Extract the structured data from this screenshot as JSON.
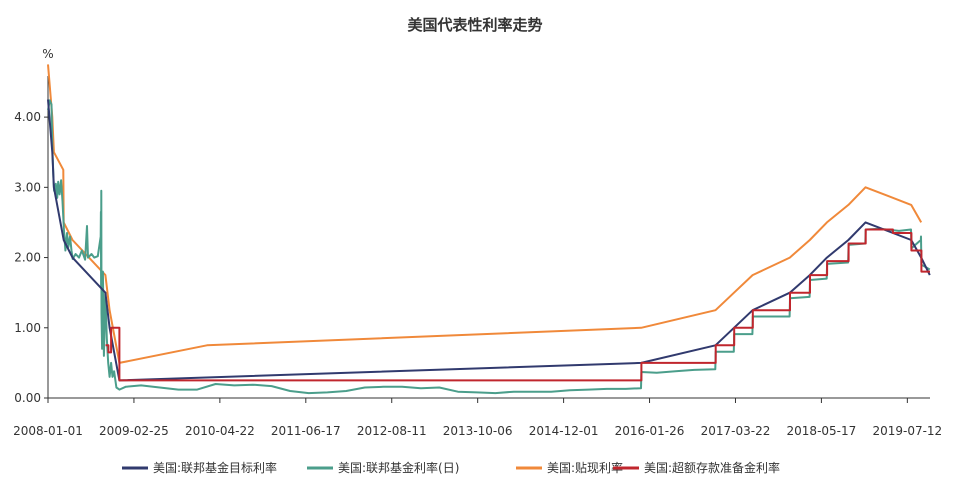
{
  "chart_data": {
    "type": "line",
    "title": "美国代表性利率走势",
    "y_unit": "%",
    "ylim": [
      0,
      4.5
    ],
    "y_ticks": [
      "0.00",
      "1.00",
      "2.00",
      "3.00",
      "4.00"
    ],
    "x_tick_labels": [
      "2008-01-01",
      "2009-02-25",
      "2010-04-22",
      "2011-06-17",
      "2012-08-11",
      "2013-10-06",
      "2014-12-01",
      "2016-01-26",
      "2017-03-22",
      "2018-05-17",
      "2019-07-12"
    ],
    "x_range": [
      "2008-01-01",
      "2019-10-31"
    ],
    "legend_position": "bottom",
    "series": [
      {
        "name": "美国:联邦基金目标利率",
        "color": "#313a6e",
        "step": false,
        "points": [
          [
            "2008-01-01",
            4.25
          ],
          [
            "2008-01-22",
            3.5
          ],
          [
            "2008-01-30",
            3.0
          ],
          [
            "2008-03-18",
            2.25
          ],
          [
            "2008-04-30",
            2.0
          ],
          [
            "2008-10-08",
            1.5
          ],
          [
            "2008-10-29",
            1.0
          ],
          [
            "2008-12-16",
            0.25
          ],
          [
            "2015-12-16",
            0.5
          ],
          [
            "2016-12-14",
            0.75
          ],
          [
            "2017-03-15",
            1.0
          ],
          [
            "2017-06-14",
            1.25
          ],
          [
            "2017-12-13",
            1.5
          ],
          [
            "2018-03-21",
            1.75
          ],
          [
            "2018-06-13",
            2.0
          ],
          [
            "2018-09-26",
            2.25
          ],
          [
            "2018-12-19",
            2.5
          ],
          [
            "2019-07-31",
            2.25
          ],
          [
            "2019-09-18",
            2.0
          ],
          [
            "2019-10-30",
            1.75
          ]
        ]
      },
      {
        "name": "美国:联邦基金利率(日)",
        "color": "#4b9e8b",
        "step": false,
        "points": [
          [
            "2008-01-01",
            4.1
          ],
          [
            "2008-01-10",
            4.24
          ],
          [
            "2008-01-18",
            4.18
          ],
          [
            "2008-01-22",
            3.6
          ],
          [
            "2008-01-28",
            3.1
          ],
          [
            "2008-01-31",
            2.95
          ],
          [
            "2008-02-08",
            3.05
          ],
          [
            "2008-02-15",
            2.85
          ],
          [
            "2008-02-20",
            3.08
          ],
          [
            "2008-02-27",
            2.9
          ],
          [
            "2008-03-05",
            3.1
          ],
          [
            "2008-03-12",
            2.8
          ],
          [
            "2008-03-19",
            2.4
          ],
          [
            "2008-03-26",
            2.1
          ],
          [
            "2008-04-03",
            2.35
          ],
          [
            "2008-04-10",
            2.15
          ],
          [
            "2008-04-18",
            2.3
          ],
          [
            "2008-04-25",
            2.1
          ],
          [
            "2008-05-01",
            1.98
          ],
          [
            "2008-05-15",
            2.05
          ],
          [
            "2008-06-01",
            2.0
          ],
          [
            "2008-06-15",
            2.1
          ],
          [
            "2008-07-01",
            1.97
          ],
          [
            "2008-07-10",
            2.45
          ],
          [
            "2008-07-15",
            2.0
          ],
          [
            "2008-08-01",
            2.05
          ],
          [
            "2008-08-15",
            2.0
          ],
          [
            "2008-09-01",
            2.02
          ],
          [
            "2008-09-15",
            2.3
          ],
          [
            "2008-09-16",
            2.65
          ],
          [
            "2008-09-17",
            1.6
          ],
          [
            "2008-09-18",
            2.95
          ],
          [
            "2008-09-19",
            1.2
          ],
          [
            "2008-09-22",
            0.7
          ],
          [
            "2008-09-26",
            1.8
          ],
          [
            "2008-10-01",
            0.6
          ],
          [
            "2008-10-08",
            1.5
          ],
          [
            "2008-10-15",
            0.85
          ],
          [
            "2008-10-22",
            0.5
          ],
          [
            "2008-10-29",
            0.3
          ],
          [
            "2008-11-05",
            0.5
          ],
          [
            "2008-11-12",
            0.3
          ],
          [
            "2008-11-20",
            0.38
          ],
          [
            "2008-12-01",
            0.15
          ],
          [
            "2008-12-16",
            0.12
          ],
          [
            "2009-01-15",
            0.16
          ],
          [
            "2009-04-01",
            0.18
          ],
          [
            "2009-07-01",
            0.15
          ],
          [
            "2009-10-01",
            0.12
          ],
          [
            "2010-01-01",
            0.12
          ],
          [
            "2010-04-01",
            0.2
          ],
          [
            "2010-07-01",
            0.18
          ],
          [
            "2010-10-01",
            0.19
          ],
          [
            "2011-01-01",
            0.17
          ],
          [
            "2011-04-01",
            0.1
          ],
          [
            "2011-07-01",
            0.07
          ],
          [
            "2011-10-01",
            0.08
          ],
          [
            "2012-01-01",
            0.1
          ],
          [
            "2012-04-01",
            0.15
          ],
          [
            "2012-07-01",
            0.16
          ],
          [
            "2012-10-01",
            0.16
          ],
          [
            "2013-01-01",
            0.14
          ],
          [
            "2013-04-01",
            0.15
          ],
          [
            "2013-07-01",
            0.09
          ],
          [
            "2013-10-01",
            0.08
          ],
          [
            "2014-01-01",
            0.07
          ],
          [
            "2014-04-01",
            0.09
          ],
          [
            "2014-07-01",
            0.09
          ],
          [
            "2014-10-01",
            0.09
          ],
          [
            "2015-01-01",
            0.11
          ],
          [
            "2015-04-01",
            0.12
          ],
          [
            "2015-07-01",
            0.13
          ],
          [
            "2015-10-01",
            0.13
          ],
          [
            "2015-12-15",
            0.14
          ],
          [
            "2015-12-17",
            0.37
          ],
          [
            "2016-03-01",
            0.36
          ],
          [
            "2016-06-01",
            0.38
          ],
          [
            "2016-09-01",
            0.4
          ],
          [
            "2016-12-13",
            0.41
          ],
          [
            "2016-12-15",
            0.66
          ],
          [
            "2017-03-14",
            0.66
          ],
          [
            "2017-03-16",
            0.91
          ],
          [
            "2017-06-13",
            0.91
          ],
          [
            "2017-06-15",
            1.16
          ],
          [
            "2017-12-12",
            1.16
          ],
          [
            "2017-12-14",
            1.42
          ],
          [
            "2018-03-20",
            1.44
          ],
          [
            "2018-03-22",
            1.68
          ],
          [
            "2018-06-12",
            1.7
          ],
          [
            "2018-06-14",
            1.91
          ],
          [
            "2018-09-25",
            1.93
          ],
          [
            "2018-09-27",
            2.18
          ],
          [
            "2018-12-18",
            2.2
          ],
          [
            "2018-12-20",
            2.4
          ],
          [
            "2019-03-01",
            2.41
          ],
          [
            "2019-06-01",
            2.38
          ],
          [
            "2019-07-30",
            2.4
          ],
          [
            "2019-08-01",
            2.13
          ],
          [
            "2019-09-16",
            2.25
          ],
          [
            "2019-09-17",
            2.3
          ],
          [
            "2019-09-19",
            1.9
          ],
          [
            "2019-10-30",
            1.83
          ]
        ]
      },
      {
        "name": "美国:贴现利率",
        "color": "#f0893a",
        "step": false,
        "points": [
          [
            "2008-01-01",
            4.75
          ],
          [
            "2008-01-22",
            4.0
          ],
          [
            "2008-01-30",
            3.5
          ],
          [
            "2008-03-16",
            3.25
          ],
          [
            "2008-03-18",
            2.5
          ],
          [
            "2008-04-30",
            2.25
          ],
          [
            "2008-10-08",
            1.75
          ],
          [
            "2008-10-29",
            1.25
          ],
          [
            "2008-12-16",
            0.5
          ],
          [
            "2010-02-18",
            0.75
          ],
          [
            "2015-12-16",
            1.0
          ],
          [
            "2016-12-14",
            1.25
          ],
          [
            "2017-03-15",
            1.5
          ],
          [
            "2017-06-14",
            1.75
          ],
          [
            "2017-12-13",
            2.0
          ],
          [
            "2018-03-21",
            2.25
          ],
          [
            "2018-06-13",
            2.5
          ],
          [
            "2018-09-26",
            2.75
          ],
          [
            "2018-12-19",
            3.0
          ],
          [
            "2019-07-31",
            2.75
          ],
          [
            "2019-09-18",
            2.5
          ]
        ]
      },
      {
        "name": "美国:超额存款准备金利率",
        "color": "#c0262d",
        "step": true,
        "points": [
          [
            "2008-10-09",
            0.75
          ],
          [
            "2008-10-23",
            0.65
          ],
          [
            "2008-11-05",
            1.0
          ],
          [
            "2008-12-16",
            0.25
          ],
          [
            "2015-12-17",
            0.5
          ],
          [
            "2016-12-15",
            0.75
          ],
          [
            "2017-03-16",
            1.0
          ],
          [
            "2017-06-15",
            1.25
          ],
          [
            "2017-12-14",
            1.5
          ],
          [
            "2018-03-22",
            1.75
          ],
          [
            "2018-06-14",
            1.95
          ],
          [
            "2018-09-27",
            2.2
          ],
          [
            "2018-12-20",
            2.4
          ],
          [
            "2019-05-02",
            2.35
          ],
          [
            "2019-08-01",
            2.1
          ],
          [
            "2019-09-19",
            1.8
          ],
          [
            "2019-10-31",
            1.8
          ]
        ]
      }
    ]
  }
}
